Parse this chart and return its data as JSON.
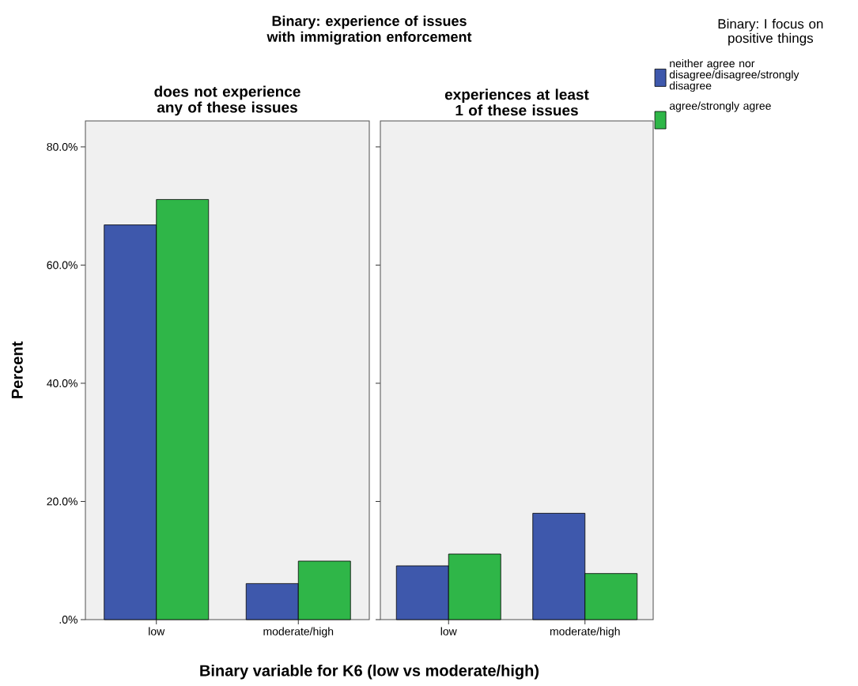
{
  "chart_data": [
    {
      "type": "bar",
      "title": "Binary: experience of issues with immigration enforcement",
      "subtitle": "does not experience any of these issues",
      "xlabel": "Binary variable for K6 (low vs moderate/high)",
      "ylabel": "Percent",
      "categories": [
        "low",
        "moderate/high"
      ],
      "series": [
        {
          "color": "#3e58ac",
          "values": [
            66.8,
            6.1
          ]
        },
        {
          "color": "#2fb648",
          "values": [
            71.1,
            9.9
          ]
        }
      ],
      "ylim": [
        0,
        84.4
      ],
      "yticks": [
        {
          "value": 0,
          "label": ".0%"
        },
        {
          "value": 20,
          "label": "20.0%"
        },
        {
          "value": 40,
          "label": "40.0%"
        },
        {
          "value": 60,
          "label": "60.0%"
        },
        {
          "value": 80,
          "label": "80.0%"
        }
      ]
    },
    {
      "type": "bar",
      "subtitle": "experiences at least 1 of these issues",
      "legend_title": "Binary: I focus on positive things",
      "legend": "top right",
      "categories": [
        "low",
        "moderate/high"
      ],
      "series": [
        {
          "name": "neither agree nor disagree/disagree/strongly disagree",
          "color": "#3e58ac",
          "values": [
            9.1,
            18.0
          ]
        },
        {
          "name": "agree/strongly agree",
          "color": "#2fb648",
          "values": [
            11.1,
            7.8
          ]
        }
      ],
      "ylim": [
        0,
        84.4
      ],
      "yticks": [
        0,
        20,
        40,
        60,
        80
      ],
      "tick_labels": "x"
    }
  ]
}
